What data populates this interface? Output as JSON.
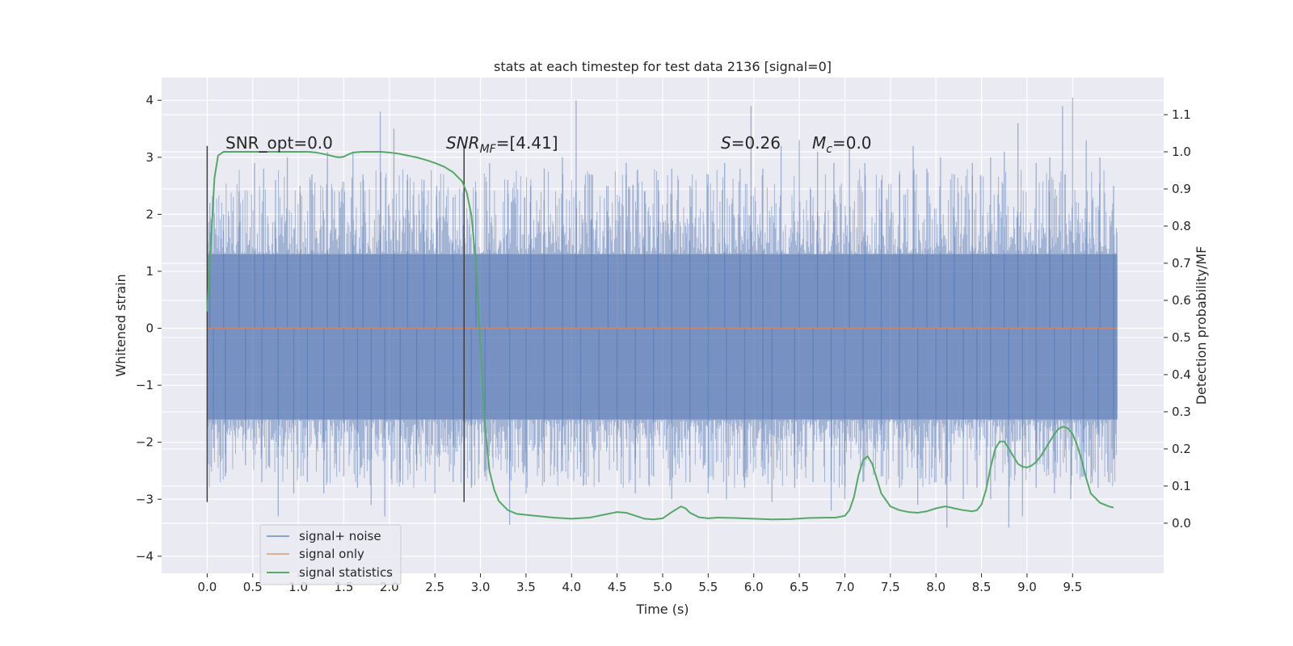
{
  "chart_data": {
    "type": "line",
    "title": "stats at each timestep for test data 2136 [signal=0]",
    "xlabel": "Time (s)",
    "ylabel": "Whitened strain",
    "y2label": "Detection probability/MF",
    "xlim": [
      -0.5,
      10.5
    ],
    "ylim": [
      -4.3,
      4.4
    ],
    "y2lim": [
      -0.135,
      1.2
    ],
    "xticks": [
      0.0,
      0.5,
      1.0,
      1.5,
      2.0,
      2.5,
      3.0,
      3.5,
      4.0,
      4.5,
      5.0,
      5.5,
      6.0,
      6.5,
      7.0,
      7.5,
      8.0,
      8.5,
      9.0,
      9.5
    ],
    "xtick_labels": [
      "0.0",
      "0.5",
      "1.0",
      "1.5",
      "2.0",
      "2.5",
      "3.0",
      "3.5",
      "4.0",
      "4.5",
      "5.0",
      "5.5",
      "6.0",
      "6.5",
      "7.0",
      "7.5",
      "8.0",
      "8.5",
      "9.0",
      "9.5"
    ],
    "yticks": [
      -4,
      -3,
      -2,
      -1,
      0,
      1,
      2,
      3,
      4
    ],
    "ytick_labels": [
      "−4",
      "−3",
      "−2",
      "−1",
      "0",
      "1",
      "2",
      "3",
      "4"
    ],
    "y2ticks": [
      0.0,
      0.1,
      0.2,
      0.3,
      0.4,
      0.5,
      0.6,
      0.7,
      0.8,
      0.9,
      1.0,
      1.1
    ],
    "y2tick_labels": [
      "0.0",
      "0.1",
      "0.2",
      "0.3",
      "0.4",
      "0.5",
      "0.6",
      "0.7",
      "0.8",
      "0.9",
      "1.0",
      "1.1"
    ],
    "grid": true,
    "legend_placement": "lower-left",
    "colors": {
      "background": "#eaeaf2",
      "grid": "#ffffff",
      "noise": "#4c72b0",
      "signal_only": "#dd8452",
      "statistics": "#55a868",
      "vline": "#404040"
    },
    "annotations": {
      "snr_opt": "SNR_opt=0.0",
      "snr_mf_italic": "SNR",
      "snr_mf_sub": "MF",
      "snr_mf_rest": "=[4.41]",
      "s_italic": "S",
      "s_rest": "=0.26",
      "mc_italic": "M",
      "mc_sub": "c",
      "mc_rest": "=0.0"
    },
    "vertical_lines_x": [
      0.0,
      2.82
    ],
    "vertical_lines_y": [
      -3.05,
      3.2
    ],
    "noise": {
      "x_start": 0.0,
      "x_end": 9.99,
      "envelope_low": -1.6,
      "envelope_high": 1.3,
      "outer_peaks": [
        {
          "x": 0.03,
          "y": 2.2
        },
        {
          "x": 0.18,
          "y": 2.0
        },
        {
          "x": 0.35,
          "y": 2.4
        },
        {
          "x": 0.52,
          "y": 2.9
        },
        {
          "x": 0.62,
          "y": 2.8
        },
        {
          "x": 0.75,
          "y": 2.6
        },
        {
          "x": 0.88,
          "y": 3.0
        },
        {
          "x": 1.02,
          "y": 2.5
        },
        {
          "x": 1.15,
          "y": 2.7
        },
        {
          "x": 1.32,
          "y": 3.1
        },
        {
          "x": 1.45,
          "y": 2.4
        },
        {
          "x": 1.6,
          "y": 3.1
        },
        {
          "x": 1.71,
          "y": 2.7
        },
        {
          "x": 1.9,
          "y": 3.8
        },
        {
          "x": 2.05,
          "y": 3.5
        },
        {
          "x": 2.2,
          "y": 2.7
        },
        {
          "x": 2.38,
          "y": 2.6
        },
        {
          "x": 2.52,
          "y": 2.5
        },
        {
          "x": 2.7,
          "y": 2.3
        },
        {
          "x": 2.95,
          "y": 2.4
        },
        {
          "x": 3.1,
          "y": 2.9
        },
        {
          "x": 3.3,
          "y": 2.6
        },
        {
          "x": 3.55,
          "y": 2.5
        },
        {
          "x": 3.7,
          "y": 2.8
        },
        {
          "x": 3.9,
          "y": 3.0
        },
        {
          "x": 4.05,
          "y": 4.0
        },
        {
          "x": 4.22,
          "y": 2.7
        },
        {
          "x": 4.4,
          "y": 2.5
        },
        {
          "x": 4.6,
          "y": 2.9
        },
        {
          "x": 4.8,
          "y": 2.4
        },
        {
          "x": 4.95,
          "y": 2.6
        },
        {
          "x": 5.1,
          "y": 2.8
        },
        {
          "x": 5.3,
          "y": 2.5
        },
        {
          "x": 5.5,
          "y": 2.7
        },
        {
          "x": 5.68,
          "y": 2.9
        },
        {
          "x": 5.85,
          "y": 2.8
        },
        {
          "x": 5.97,
          "y": 3.9
        },
        {
          "x": 6.1,
          "y": 2.8
        },
        {
          "x": 6.3,
          "y": 3.2
        },
        {
          "x": 6.5,
          "y": 3.3
        },
        {
          "x": 6.7,
          "y": 3.1
        },
        {
          "x": 6.88,
          "y": 2.9
        },
        {
          "x": 7.05,
          "y": 3.2
        },
        {
          "x": 7.22,
          "y": 2.9
        },
        {
          "x": 7.4,
          "y": 2.6
        },
        {
          "x": 7.6,
          "y": 2.7
        },
        {
          "x": 7.75,
          "y": 3.2
        },
        {
          "x": 7.9,
          "y": 2.8
        },
        {
          "x": 8.05,
          "y": 3.0
        },
        {
          "x": 8.2,
          "y": 2.7
        },
        {
          "x": 8.4,
          "y": 2.9
        },
        {
          "x": 8.6,
          "y": 3.0
        },
        {
          "x": 8.75,
          "y": 3.1
        },
        {
          "x": 8.9,
          "y": 3.6
        },
        {
          "x": 9.1,
          "y": 2.9
        },
        {
          "x": 9.25,
          "y": 3.0
        },
        {
          "x": 9.39,
          "y": 3.9
        },
        {
          "x": 9.5,
          "y": 4.05
        },
        {
          "x": 9.65,
          "y": 3.3
        },
        {
          "x": 9.8,
          "y": 3.0
        },
        {
          "x": 9.95,
          "y": 2.5
        }
      ],
      "outer_troughs": [
        {
          "x": 0.07,
          "y": -2.1
        },
        {
          "x": 0.2,
          "y": -2.6
        },
        {
          "x": 0.42,
          "y": -2.4
        },
        {
          "x": 0.6,
          "y": -2.7
        },
        {
          "x": 0.78,
          "y": -3.3
        },
        {
          "x": 0.95,
          "y": -2.9
        },
        {
          "x": 1.1,
          "y": -2.7
        },
        {
          "x": 1.28,
          "y": -2.9
        },
        {
          "x": 1.5,
          "y": -2.6
        },
        {
          "x": 1.65,
          "y": -2.8
        },
        {
          "x": 1.8,
          "y": -3.1
        },
        {
          "x": 1.95,
          "y": -3.3
        },
        {
          "x": 2.12,
          "y": -2.7
        },
        {
          "x": 2.3,
          "y": -2.5
        },
        {
          "x": 2.5,
          "y": -2.9
        },
        {
          "x": 2.7,
          "y": -2.7
        },
        {
          "x": 2.9,
          "y": -2.8
        },
        {
          "x": 3.05,
          "y": -2.6
        },
        {
          "x": 3.32,
          "y": -3.45
        },
        {
          "x": 3.5,
          "y": -2.9
        },
        {
          "x": 3.7,
          "y": -2.7
        },
        {
          "x": 3.9,
          "y": -2.5
        },
        {
          "x": 4.1,
          "y": -2.6
        },
        {
          "x": 4.3,
          "y": -2.7
        },
        {
          "x": 4.5,
          "y": -2.5
        },
        {
          "x": 4.7,
          "y": -2.9
        },
        {
          "x": 4.9,
          "y": -2.6
        },
        {
          "x": 5.1,
          "y": -3.0
        },
        {
          "x": 5.3,
          "y": -2.7
        },
        {
          "x": 5.5,
          "y": -2.9
        },
        {
          "x": 5.7,
          "y": -3.0
        },
        {
          "x": 5.9,
          "y": -2.8
        },
        {
          "x": 6.1,
          "y": -2.6
        },
        {
          "x": 6.2,
          "y": -3.05
        },
        {
          "x": 6.45,
          "y": -2.8
        },
        {
          "x": 6.65,
          "y": -2.7
        },
        {
          "x": 6.85,
          "y": -3.2
        },
        {
          "x": 7.0,
          "y": -3.0
        },
        {
          "x": 7.2,
          "y": -2.7
        },
        {
          "x": 7.4,
          "y": -2.6
        },
        {
          "x": 7.6,
          "y": -2.8
        },
        {
          "x": 7.8,
          "y": -3.1
        },
        {
          "x": 8.0,
          "y": -2.7
        },
        {
          "x": 8.12,
          "y": -3.5
        },
        {
          "x": 8.3,
          "y": -3.0
        },
        {
          "x": 8.45,
          "y": -2.8
        },
        {
          "x": 8.6,
          "y": -3.0
        },
        {
          "x": 8.8,
          "y": -3.5
        },
        {
          "x": 8.95,
          "y": -3.3
        },
        {
          "x": 9.1,
          "y": -2.8
        },
        {
          "x": 9.3,
          "y": -2.9
        },
        {
          "x": 9.48,
          "y": -3.0
        },
        {
          "x": 9.62,
          "y": -2.6
        },
        {
          "x": 9.78,
          "y": -2.8
        },
        {
          "x": 9.95,
          "y": -2.3
        }
      ]
    },
    "signal_only": {
      "x": [
        0.0,
        9.99
      ],
      "y": [
        0.0,
        0.0
      ]
    },
    "statistics": {
      "x": [
        0.0,
        0.04,
        0.08,
        0.12,
        0.18,
        0.25,
        0.35,
        0.5,
        0.7,
        0.9,
        1.1,
        1.2,
        1.3,
        1.4,
        1.45,
        1.5,
        1.55,
        1.6,
        1.7,
        1.8,
        1.9,
        2.0,
        2.1,
        2.2,
        2.3,
        2.4,
        2.5,
        2.6,
        2.7,
        2.8,
        2.85,
        2.9,
        2.95,
        3.0,
        3.05,
        3.1,
        3.15,
        3.2,
        3.3,
        3.4,
        3.6,
        3.8,
        4.0,
        4.2,
        4.4,
        4.5,
        4.6,
        4.7,
        4.8,
        4.9,
        5.0,
        5.1,
        5.2,
        5.25,
        5.3,
        5.4,
        5.5,
        5.6,
        5.8,
        6.0,
        6.2,
        6.4,
        6.6,
        6.8,
        6.9,
        7.0,
        7.05,
        7.1,
        7.15,
        7.2,
        7.25,
        7.3,
        7.35,
        7.4,
        7.5,
        7.6,
        7.7,
        7.8,
        7.9,
        8.0,
        8.1,
        8.15,
        8.2,
        8.3,
        8.4,
        8.45,
        8.5,
        8.55,
        8.6,
        8.65,
        8.7,
        8.75,
        8.8,
        8.85,
        8.9,
        8.95,
        9.0,
        9.05,
        9.1,
        9.15,
        9.2,
        9.25,
        9.3,
        9.35,
        9.4,
        9.45,
        9.5,
        9.55,
        9.6,
        9.65,
        9.7,
        9.8,
        9.9,
        9.95
      ],
      "y": [
        0.57,
        0.75,
        0.93,
        0.99,
        1.0,
        1.0,
        1.0,
        1.0,
        1.0,
        1.0,
        1.0,
        0.998,
        0.993,
        0.987,
        0.985,
        0.987,
        0.993,
        0.998,
        1.0,
        1.0,
        1.0,
        0.998,
        0.995,
        0.99,
        0.985,
        0.978,
        0.97,
        0.96,
        0.945,
        0.92,
        0.89,
        0.83,
        0.7,
        0.48,
        0.26,
        0.14,
        0.09,
        0.06,
        0.035,
        0.025,
        0.02,
        0.015,
        0.012,
        0.015,
        0.025,
        0.03,
        0.028,
        0.02,
        0.012,
        0.01,
        0.013,
        0.03,
        0.045,
        0.04,
        0.028,
        0.016,
        0.013,
        0.015,
        0.014,
        0.012,
        0.01,
        0.011,
        0.014,
        0.015,
        0.015,
        0.02,
        0.035,
        0.07,
        0.13,
        0.17,
        0.18,
        0.16,
        0.12,
        0.08,
        0.045,
        0.035,
        0.03,
        0.028,
        0.032,
        0.04,
        0.045,
        0.043,
        0.04,
        0.035,
        0.032,
        0.035,
        0.05,
        0.09,
        0.15,
        0.2,
        0.22,
        0.22,
        0.2,
        0.18,
        0.16,
        0.152,
        0.15,
        0.155,
        0.165,
        0.18,
        0.2,
        0.22,
        0.24,
        0.255,
        0.26,
        0.255,
        0.24,
        0.21,
        0.17,
        0.12,
        0.08,
        0.055,
        0.045,
        0.042
      ]
    },
    "legend": [
      {
        "key": "noise",
        "label": "signal+ noise"
      },
      {
        "key": "signal_only",
        "label": "signal only"
      },
      {
        "key": "statistics",
        "label": "signal statistics"
      }
    ]
  }
}
